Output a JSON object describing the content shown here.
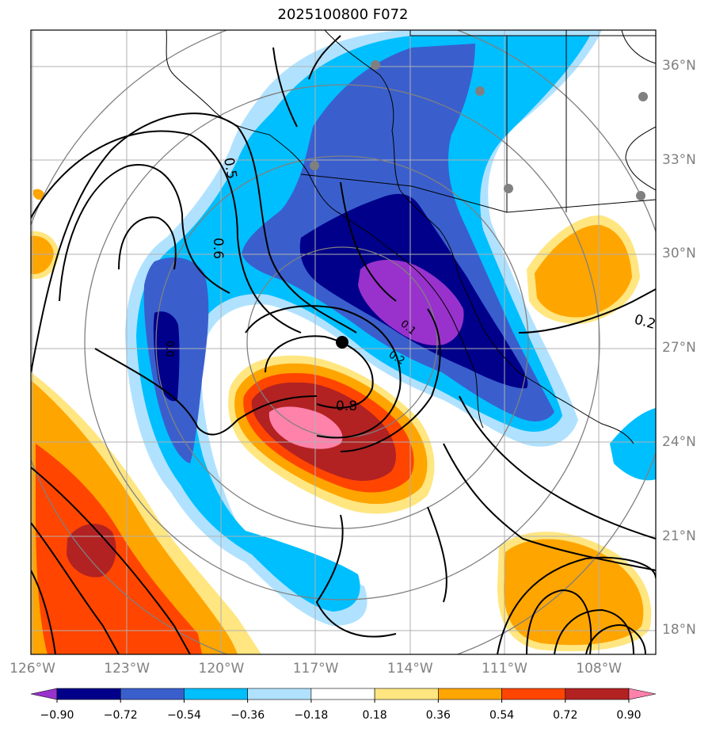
{
  "title": "2025100800 F072",
  "lat_labels": [
    {
      "text": "36°N",
      "lat": 36
    },
    {
      "text": "33°N",
      "lat": 33
    },
    {
      "text": "30°N",
      "lat": 30
    },
    {
      "text": "27°N",
      "lat": 27
    },
    {
      "text": "24°N",
      "lat": 24
    },
    {
      "text": "21°N",
      "lat": 21
    },
    {
      "text": "18°N",
      "lat": 18
    }
  ],
  "lon_labels": [
    {
      "text": "126°W",
      "lon": -126
    },
    {
      "text": "123°W",
      "lon": -123
    },
    {
      "text": "120°W",
      "lon": -120
    },
    {
      "text": "117°W",
      "lon": -117
    },
    {
      "text": "114°W",
      "lon": -114
    },
    {
      "text": "111°W",
      "lon": -111
    },
    {
      "text": "108°W",
      "lon": -108
    }
  ],
  "contour_labels": [
    "0.5",
    "0.6",
    "0.2",
    "0.8",
    "0.2",
    "0.1",
    "0.0"
  ],
  "colorbar": {
    "ticks": [
      "−0.90",
      "−0.72",
      "−0.54",
      "−0.36",
      "−0.18",
      "0.18",
      "0.36",
      "0.54",
      "0.72",
      "0.90"
    ],
    "colors": [
      "#9932cc",
      "#00008b",
      "#3a5fcd",
      "#00bfff",
      "#b0e2ff",
      "#ffffff",
      "#ffe680",
      "#ffa500",
      "#ff4500",
      "#b22222",
      "#ff82ab"
    ]
  },
  "center_marker": {
    "lon": -116.2,
    "lat": 27.2
  }
}
